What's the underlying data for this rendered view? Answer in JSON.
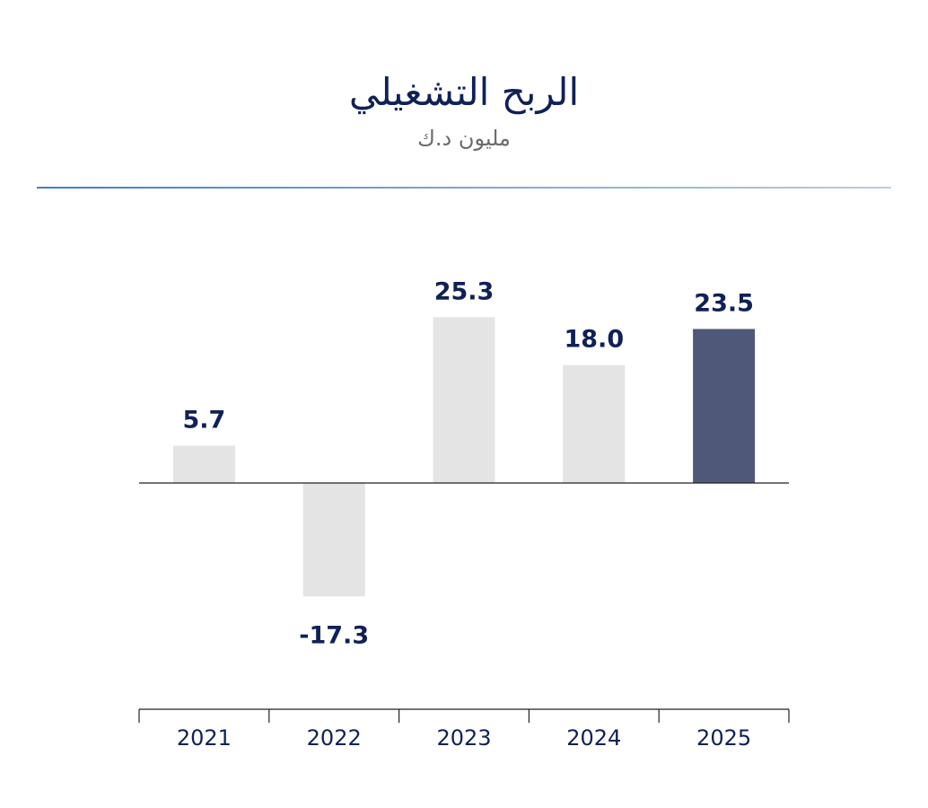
{
  "chart_data": {
    "type": "bar",
    "title": "الربح التشغيلي",
    "subtitle": "مليون د.ك",
    "categories": [
      "2021",
      "2022",
      "2023",
      "2024",
      "2025"
    ],
    "values": [
      5.7,
      -17.3,
      25.3,
      18.0,
      23.5
    ],
    "labels": [
      "5.7",
      "-17.3",
      "25.3",
      "18.0",
      "23.5"
    ],
    "highlight_index": 4,
    "colors": {
      "default": "#e3e4e3",
      "highlight": "#4f5879",
      "text": "#0f2157"
    },
    "xlabel": "",
    "ylabel": "",
    "ylim": [
      -25,
      30
    ],
    "grid": false
  }
}
